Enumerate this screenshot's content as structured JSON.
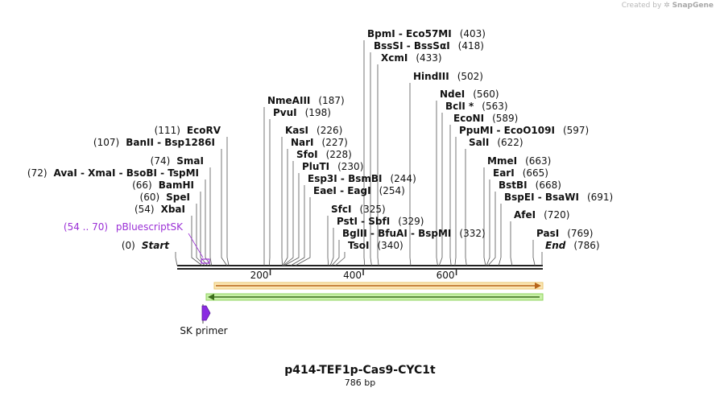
{
  "credit": {
    "prefix": "Created by",
    "brand": "SnapGene"
  },
  "plasmid": {
    "name": "p414-TEF1p-Cas9-CYC1t",
    "size_label": "786 bp",
    "length": 786
  },
  "ticks": [
    {
      "pos": 200,
      "label": "200"
    },
    {
      "pos": 400,
      "label": "400"
    },
    {
      "pos": 600,
      "label": "600"
    }
  ],
  "enzymes": [
    {
      "key": "start",
      "text": "Start",
      "pos_label": "(0)",
      "pos": 0
    },
    {
      "key": "end",
      "text": "End",
      "pos_label": "(786)",
      "pos": 786
    },
    {
      "key": "xbai",
      "text": "XbaI",
      "pos_label": "(54)",
      "pos": 54
    },
    {
      "key": "spei",
      "text": "SpeI",
      "pos_label": "(60)",
      "pos": 60
    },
    {
      "key": "bamhi",
      "text": "BamHI",
      "pos_label": "(66)",
      "pos": 66
    },
    {
      "key": "avai",
      "text": "AvaI  - XmaI  - BsoBI  - TspMI",
      "pos_label": "(72)",
      "pos": 72
    },
    {
      "key": "smai",
      "text": "SmaI",
      "pos_label": "(74)",
      "pos": 74
    },
    {
      "key": "banii",
      "text": "BanII  - Bsp1286I",
      "pos_label": "(107)",
      "pos": 107
    },
    {
      "key": "ecorv",
      "text": "EcoRV",
      "pos_label": "(111)",
      "pos": 111
    },
    {
      "key": "nmeaiii",
      "text": "NmeAIII",
      "pos_label": "(187)",
      "pos": 187
    },
    {
      "key": "pvui",
      "text": "PvuI",
      "pos_label": "(198)",
      "pos": 198
    },
    {
      "key": "kasi",
      "text": "KasI",
      "pos_label": "(226)",
      "pos": 226
    },
    {
      "key": "nari",
      "text": "NarI",
      "pos_label": "(227)",
      "pos": 227
    },
    {
      "key": "sfoi",
      "text": "SfoI",
      "pos_label": "(228)",
      "pos": 228
    },
    {
      "key": "pluti",
      "text": "PluTI",
      "pos_label": "(230)",
      "pos": 230
    },
    {
      "key": "esp3i",
      "text": "Esp3I  - BsmBI",
      "pos_label": "(244)",
      "pos": 244
    },
    {
      "key": "eaei",
      "text": "EaeI  - EagI",
      "pos_label": "(254)",
      "pos": 254
    },
    {
      "key": "sfci",
      "text": "SfcI",
      "pos_label": "(325)",
      "pos": 325
    },
    {
      "key": "psti",
      "text": "PstI  - SbfI",
      "pos_label": "(329)",
      "pos": 329
    },
    {
      "key": "bglii",
      "text": "BglII  - BfuAI  - BspMI",
      "pos_label": "(332)",
      "pos": 332
    },
    {
      "key": "tsoi",
      "text": "TsoI",
      "pos_label": "(340)",
      "pos": 340
    },
    {
      "key": "bpmi",
      "text": "BpmI  - Eco57MI",
      "pos_label": "(403)",
      "pos": 403
    },
    {
      "key": "bsssi",
      "text": "BssSI  - BssSαI",
      "pos_label": "(418)",
      "pos": 418
    },
    {
      "key": "xcmi",
      "text": "XcmI",
      "pos_label": "(433)",
      "pos": 433
    },
    {
      "key": "hindiii",
      "text": "HindIII",
      "pos_label": "(502)",
      "pos": 502
    },
    {
      "key": "ndei",
      "text": "NdeI",
      "pos_label": "(560)",
      "pos": 560
    },
    {
      "key": "bcli",
      "text": "BclI *",
      "pos_label": "(563)",
      "pos": 563
    },
    {
      "key": "econi",
      "text": "EcoNI",
      "pos_label": "(589)",
      "pos": 589
    },
    {
      "key": "ppumi",
      "text": "PpuMI  - EcoO109I",
      "pos_label": "(597)",
      "pos": 597
    },
    {
      "key": "sali",
      "text": "SalI",
      "pos_label": "(622)",
      "pos": 622
    },
    {
      "key": "mmei",
      "text": "MmeI",
      "pos_label": "(663)",
      "pos": 663
    },
    {
      "key": "eari",
      "text": "EarI",
      "pos_label": "(665)",
      "pos": 665
    },
    {
      "key": "bstbi",
      "text": "BstBI",
      "pos_label": "(668)",
      "pos": 668
    },
    {
      "key": "bspei",
      "text": "BspEI  - BsaWI",
      "pos_label": "(691)",
      "pos": 691
    },
    {
      "key": "afei",
      "text": "AfeI",
      "pos_label": "(720)",
      "pos": 720
    },
    {
      "key": "pasi",
      "text": "PasI",
      "pos_label": "(769)",
      "pos": 769
    }
  ],
  "feature": {
    "text": "pBluescriptSK",
    "range_label": "(54 .. 70)",
    "start": 54,
    "end": 70,
    "color": "#9b30d6"
  },
  "primer": {
    "label": "SK primer",
    "color": "#8a2be2"
  },
  "colors": {
    "orange_arrow": "#d99a2b",
    "green_arrow": "#6fcf3a",
    "backbone": "#222222"
  }
}
